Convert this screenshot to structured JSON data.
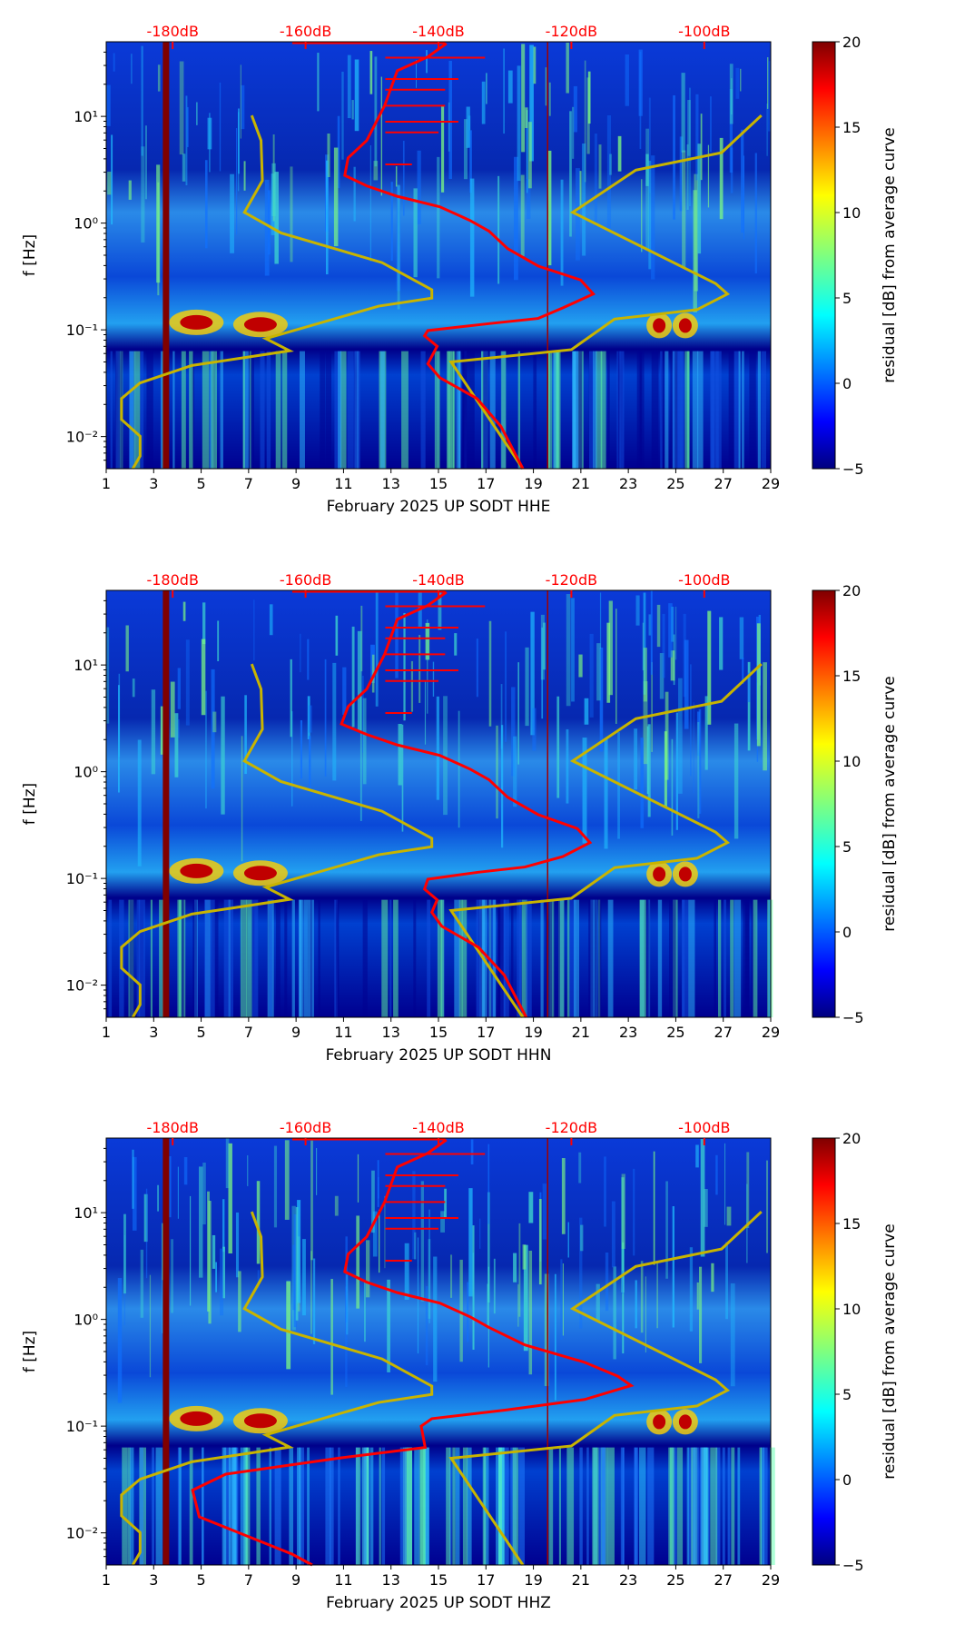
{
  "chart_data": [
    {
      "type": "heatmap",
      "title": "",
      "xlabel": "February 2025 UP SODT  HHE",
      "ylabel": "f [Hz]",
      "colorbar_label": "residual [dB] from average curve"
    },
    {
      "type": "heatmap",
      "title": "",
      "xlabel": "February 2025 UP SODT  HHN",
      "ylabel": "f [Hz]",
      "colorbar_label": "residual [dB] from average curve"
    },
    {
      "type": "heatmap",
      "title": "",
      "xlabel": "February 2025 UP SODT  HHZ",
      "ylabel": "f [Hz]",
      "colorbar_label": "residual [dB] from average curve"
    }
  ],
  "axes": {
    "x_range": [
      1,
      29
    ],
    "x_ticks": [
      "1",
      "3",
      "5",
      "7",
      "9",
      "11",
      "13",
      "15",
      "17",
      "19",
      "21",
      "23",
      "25",
      "27",
      "29"
    ],
    "y_range_hz": [
      0.005,
      50
    ],
    "y_ticks": [
      {
        "v": -2,
        "label": "10⁻²"
      },
      {
        "v": -1,
        "label": "10⁻¹"
      },
      {
        "v": 0,
        "label": "10⁰"
      },
      {
        "v": 1,
        "label": "10¹"
      }
    ],
    "top_range_db": [
      -190,
      -90
    ],
    "top_ticks": [
      {
        "v": -180,
        "label": "-180dB"
      },
      {
        "v": -160,
        "label": "-160dB"
      },
      {
        "v": -140,
        "label": "-140dB"
      },
      {
        "v": -120,
        "label": "-120dB"
      },
      {
        "v": -100,
        "label": "-100dB"
      }
    ],
    "cbar_range": [
      -5,
      20
    ],
    "cbar_ticks": [
      {
        "v": 20,
        "label": "20"
      },
      {
        "v": 15,
        "label": "15"
      },
      {
        "v": 10,
        "label": "10"
      },
      {
        "v": 5,
        "label": "5"
      },
      {
        "v": 0,
        "label": "0"
      },
      {
        "v": -5,
        "label": "−5"
      }
    ]
  },
  "curves": {
    "nlnm": {
      "color": "#c8b400",
      "points_db_logf": [
        [
          -168.1,
          1.009
        ],
        [
          -166.7,
          0.774
        ],
        [
          -166.5,
          0.398
        ],
        [
          -169.2,
          0.101
        ],
        [
          -163.7,
          -0.092
        ],
        [
          -148.5,
          -0.37
        ],
        [
          -141,
          -0.625
        ],
        [
          -141,
          -0.703
        ],
        [
          -149,
          -0.778
        ],
        [
          -166,
          -1.082
        ],
        [
          -162.4,
          -1.196
        ],
        [
          -168.3,
          -1.252
        ],
        [
          -177.1,
          -1.334
        ],
        [
          -184.9,
          -1.497
        ],
        [
          -187.7,
          -1.644
        ],
        [
          -187.7,
          -1.84
        ],
        [
          -184.9,
          -1.997
        ],
        [
          -184.9,
          -2.183
        ],
        [
          -186,
          -2.301
        ]
      ]
    },
    "nhnm": {
      "color": "#c8b400",
      "points_db_logf": [
        [
          -91.4,
          1.009
        ],
        [
          -97.4,
          0.66
        ],
        [
          -110.3,
          0.497
        ],
        [
          -119.8,
          0.101
        ],
        [
          -98.3,
          -0.566
        ],
        [
          -96.5,
          -0.664
        ],
        [
          -101.1,
          -0.811
        ],
        [
          -113.5,
          -0.899
        ],
        [
          -120,
          -1.186
        ],
        [
          -138.1,
          -1.301
        ],
        [
          -127.3,
          -2.301
        ]
      ]
    },
    "average": [
      {
        "color": "#ff0000",
        "points_db_logf": [
          [
            -138.8,
            1.683
          ],
          [
            -141.6,
            1.558
          ],
          [
            -146.2,
            1.428
          ],
          [
            -148.1,
            1.101
          ],
          [
            -150.8,
            0.774
          ],
          [
            -153.6,
            0.611
          ],
          [
            -154.1,
            0.447
          ],
          [
            -150.8,
            0.349
          ],
          [
            -146.2,
            0.251
          ],
          [
            -139.8,
            0.153
          ],
          [
            -135.2,
            0.023
          ],
          [
            -132.4,
            -0.075
          ],
          [
            -129.6,
            -0.239
          ],
          [
            -125,
            -0.402
          ],
          [
            -118.6,
            -0.533
          ],
          [
            -116.7,
            -0.664
          ],
          [
            -121.3,
            -0.795
          ],
          [
            -125,
            -0.893
          ],
          [
            -132.4,
            -0.942
          ],
          [
            -141.6,
            -1.007
          ],
          [
            -142.1,
            -1.056
          ],
          [
            -140.2,
            -1.154
          ],
          [
            -141.6,
            -1.318
          ],
          [
            -139.8,
            -1.448
          ],
          [
            -134.2,
            -1.644
          ],
          [
            -130.6,
            -1.905
          ],
          [
            -127.3,
            -2.301
          ]
        ]
      },
      {
        "color": "#ff0000",
        "points_db_logf": [
          [
            -138.8,
            1.683
          ],
          [
            -141.6,
            1.558
          ],
          [
            -146.2,
            1.428
          ],
          [
            -148.1,
            1.101
          ],
          [
            -150.8,
            0.774
          ],
          [
            -153.6,
            0.611
          ],
          [
            -154.6,
            0.447
          ],
          [
            -150.8,
            0.349
          ],
          [
            -146.2,
            0.251
          ],
          [
            -139.8,
            0.153
          ],
          [
            -135.2,
            0.023
          ],
          [
            -132.4,
            -0.075
          ],
          [
            -129.6,
            -0.239
          ],
          [
            -125,
            -0.402
          ],
          [
            -119.1,
            -0.533
          ],
          [
            -117.2,
            -0.664
          ],
          [
            -121.3,
            -0.795
          ],
          [
            -127,
            -0.893
          ],
          [
            -134,
            -0.942
          ],
          [
            -141.6,
            -1.007
          ],
          [
            -142.1,
            -1.1
          ],
          [
            -140.2,
            -1.2
          ],
          [
            -141,
            -1.318
          ],
          [
            -139.5,
            -1.448
          ],
          [
            -134,
            -1.644
          ],
          [
            -130.1,
            -1.905
          ],
          [
            -126.8,
            -2.301
          ]
        ]
      },
      {
        "color": "#ff0000",
        "points_db_logf": [
          [
            -138.8,
            1.683
          ],
          [
            -141.6,
            1.558
          ],
          [
            -146.2,
            1.428
          ],
          [
            -148.1,
            1.101
          ],
          [
            -150.8,
            0.774
          ],
          [
            -153.6,
            0.611
          ],
          [
            -154.1,
            0.447
          ],
          [
            -150.8,
            0.349
          ],
          [
            -146.2,
            0.251
          ],
          [
            -139.8,
            0.153
          ],
          [
            -135.2,
            0.023
          ],
          [
            -132.4,
            -0.075
          ],
          [
            -127,
            -0.239
          ],
          [
            -118,
            -0.402
          ],
          [
            -113,
            -0.533
          ],
          [
            -111,
            -0.62
          ],
          [
            -118,
            -0.75
          ],
          [
            -130,
            -0.85
          ],
          [
            -141,
            -0.93
          ],
          [
            -142.6,
            -1.0
          ],
          [
            -142,
            -1.2
          ],
          [
            -155,
            -1.3
          ],
          [
            -172,
            -1.45
          ],
          [
            -177,
            -1.6
          ],
          [
            -176,
            -1.85
          ],
          [
            -170,
            -2.0
          ],
          [
            -162,
            -2.2
          ],
          [
            -159,
            -2.301
          ]
        ]
      }
    ]
  }
}
